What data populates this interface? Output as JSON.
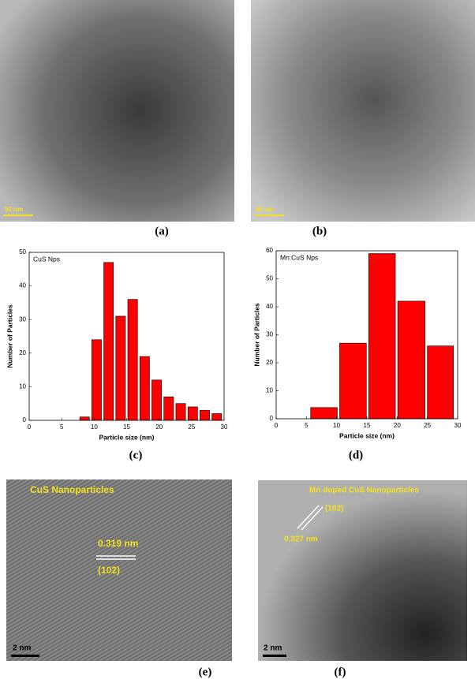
{
  "figure": {
    "panel_labels": [
      "(a)",
      "(b)",
      "(c)",
      "(d)",
      "(e)",
      "(f)"
    ],
    "scale_bars": [
      "50 nm",
      "50 nm",
      "2 nm",
      "2 nm"
    ],
    "image_e": {
      "title": "CuS Nanoparticles",
      "spacing": "0.319 nm",
      "plane": "(102)"
    },
    "image_f": {
      "title": "Mn doped CuS Nanoparticles",
      "spacing": "0.327 nm",
      "plane": "(102)"
    }
  },
  "chart_data": [
    {
      "type": "histogram",
      "annotation": "CuS Nps",
      "xlabel": "Particle size (nm)",
      "ylabel": "Number of Particles",
      "bins": [
        7.6,
        9.45,
        11.3,
        13.15,
        15,
        16.85,
        18.7,
        20.55,
        22.4,
        24.25,
        26.1,
        27.95,
        29.8
      ],
      "values": [
        1,
        24,
        47,
        31,
        36,
        19,
        12,
        7,
        5,
        4,
        3,
        2
      ],
      "color": "#ff0000",
      "xlim": [
        0,
        30
      ],
      "ylim": [
        0,
        50
      ],
      "xticks": [
        0,
        5,
        10,
        15,
        20,
        25,
        30
      ],
      "yticks": [
        0,
        10,
        20,
        30,
        40,
        50
      ]
    },
    {
      "type": "histogram",
      "annotation": "Mn:CuS Nps",
      "xlabel": "Particle size (nm)",
      "ylabel": "Number of Particles",
      "bins": [
        5.5,
        10.3,
        15.1,
        19.9,
        24.8,
        29.5
      ],
      "values": [
        4,
        27,
        59,
        42,
        26
      ],
      "color": "#ff0000",
      "xlim": [
        0,
        30
      ],
      "ylim": [
        0,
        60
      ],
      "xticks": [
        0,
        5,
        10,
        15,
        20,
        25,
        30
      ],
      "yticks": [
        0,
        10,
        20,
        30,
        40,
        50,
        60
      ]
    }
  ]
}
